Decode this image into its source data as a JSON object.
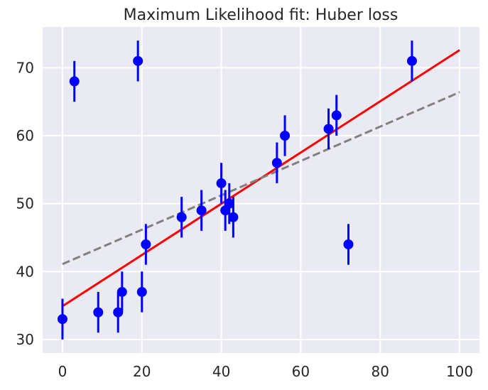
{
  "chart_data": {
    "type": "scatter",
    "title": "Maximum Likelihood fit: Huber loss",
    "xlabel": "",
    "ylabel": "",
    "xlim": [
      -5,
      105
    ],
    "ylim": [
      28,
      76
    ],
    "xticks": [
      0,
      20,
      40,
      60,
      80,
      100
    ],
    "yticks": [
      30,
      40,
      50,
      60,
      70
    ],
    "xtick_labels": [
      "0",
      "20",
      "40",
      "60",
      "80",
      "100"
    ],
    "ytick_labels": [
      "30",
      "40",
      "50",
      "60",
      "70"
    ],
    "grid": true,
    "colors": {
      "background": "#eaeaf2",
      "grid": "#ffffff",
      "points": "#0000ff",
      "huber_fit": "#ff0000",
      "ls_fit": "#808080"
    },
    "points": {
      "x": [
        0,
        3,
        9,
        14,
        15,
        19,
        20,
        21,
        30,
        35,
        40,
        41,
        42,
        43,
        54,
        56,
        67,
        69,
        72,
        88
      ],
      "y": [
        33,
        68,
        34,
        34,
        37,
        71,
        37,
        44,
        48,
        49,
        53,
        49,
        50,
        48,
        56,
        60,
        61,
        63,
        44,
        71
      ],
      "yerr": 3
    },
    "lines": [
      {
        "style": "solid",
        "color_key": "huber_fit",
        "x": [
          0,
          100
        ],
        "y": [
          34.9,
          72.6
        ]
      },
      {
        "style": "dashed",
        "color_key": "ls_fit",
        "x": [
          0,
          100
        ],
        "y": [
          41.1,
          66.4
        ]
      }
    ]
  }
}
